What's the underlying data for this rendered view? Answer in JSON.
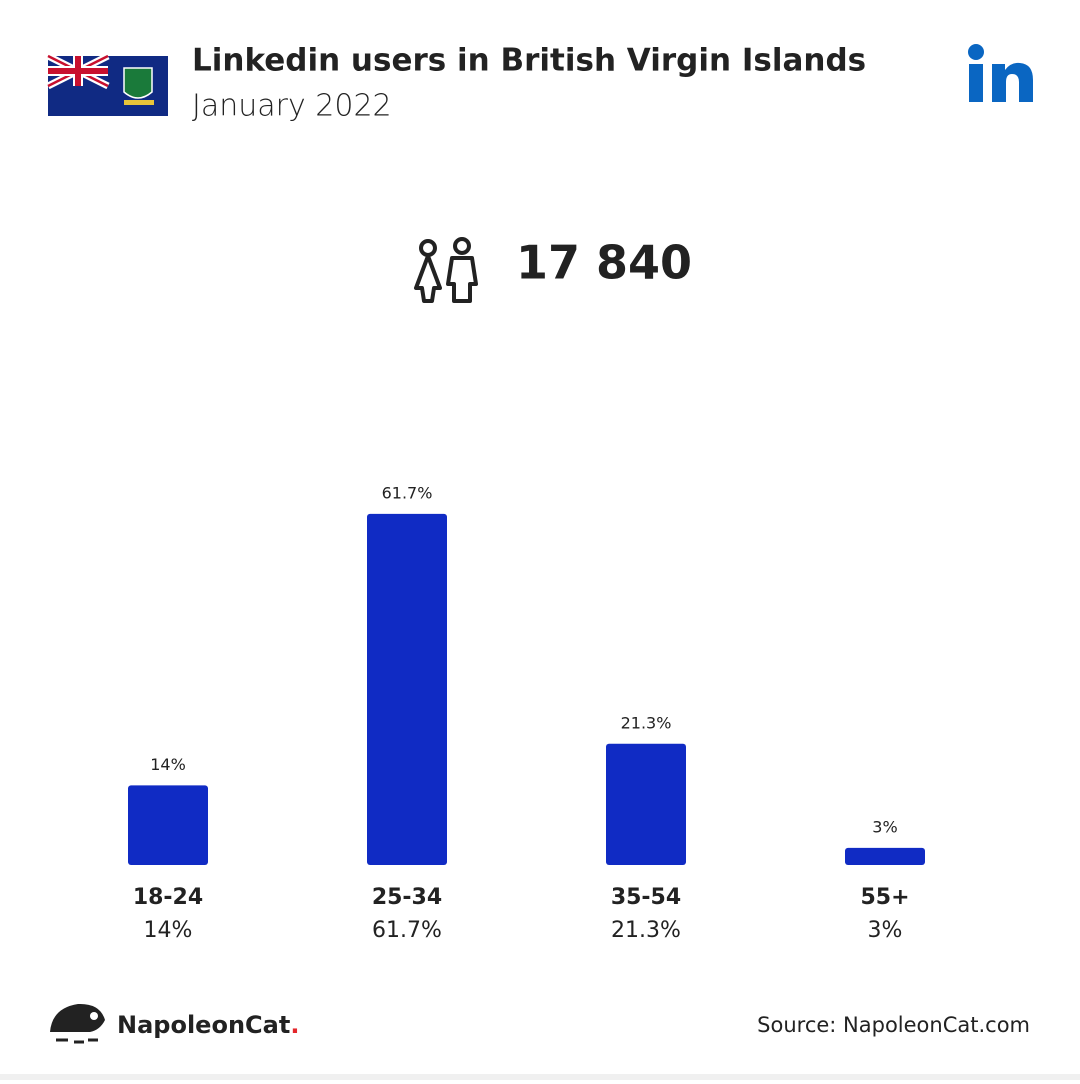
{
  "chart_data": {
    "type": "bar",
    "title": "Linkedin users in British Virgin Islands",
    "subtitle": "January 2022",
    "total": "17 840",
    "categories": [
      "18-24",
      "25-34",
      "35-54",
      "55+"
    ],
    "values": [
      14,
      61.7,
      21.3,
      3
    ],
    "value_labels": [
      "14%",
      "61.7%",
      "21.3%",
      "3%"
    ],
    "color": "#102bc4",
    "brand_name": "NapoleonCat",
    "brand_dot": ".",
    "source": "Source: NapoleonCat.com"
  }
}
